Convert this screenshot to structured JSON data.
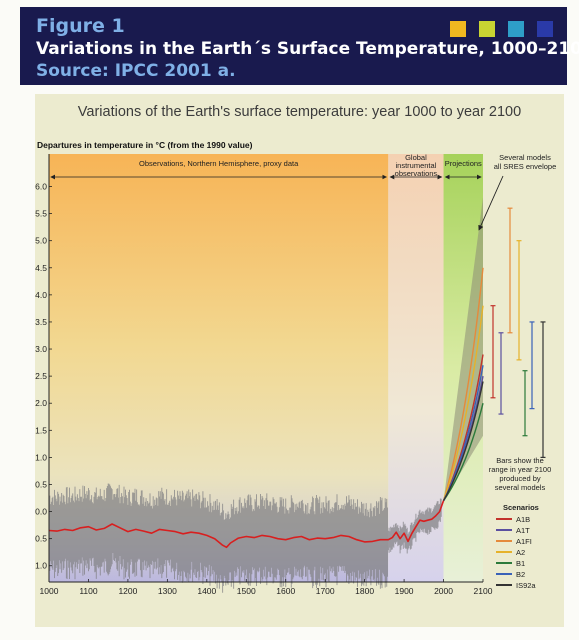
{
  "header": {
    "figure_label": "Figure 1",
    "title": "Variations in the Earth´s Surface Temperature, 1000–2100.",
    "source": "Source: IPCC 2001 a.",
    "swatch_colors": [
      "#f0b820",
      "#c8d432",
      "#2e9ec8",
      "#2a3aa8"
    ]
  },
  "chart_data": {
    "type": "line",
    "title": "Variations of the Earth's surface temperature: year 1000 to year 2100",
    "ylabel": "Departures in temperature in °C (from the 1990 value)",
    "xlim": [
      1000,
      2100
    ],
    "ylim": [
      -1.3,
      6.6
    ],
    "x_ticks": [
      "1000",
      "1100",
      "1200",
      "1300",
      "1400",
      "1500",
      "1600",
      "1700",
      "1800",
      "1900",
      "2000",
      "2100"
    ],
    "y_ticks": [
      "-1.0",
      "-0.5",
      "0.0",
      "0.5",
      "1.0",
      "1.5",
      "2.0",
      "2.5",
      "3.0",
      "3.5",
      "4.0",
      "4.5",
      "5.0",
      "5.5",
      "6.0"
    ],
    "periods": [
      {
        "label": "Observations, Northern Hemisphere, proxy data",
        "from": 1000,
        "to": 1860
      },
      {
        "label": "Global instrumental observations",
        "from": 1860,
        "to": 2000
      },
      {
        "label": "Projections",
        "from": 2000,
        "to": 2100
      }
    ],
    "envelope_label": "Several models all SRES envelope",
    "bars_note": "Bars show the range in year 2100 produced by several models",
    "scenarios_title": "Scenarios",
    "observed": {
      "color": "#d81f1f",
      "x": [
        1000,
        1020,
        1040,
        1060,
        1080,
        1100,
        1120,
        1140,
        1160,
        1180,
        1200,
        1220,
        1240,
        1260,
        1280,
        1300,
        1320,
        1340,
        1360,
        1380,
        1400,
        1420,
        1440,
        1450,
        1460,
        1480,
        1500,
        1520,
        1540,
        1560,
        1580,
        1600,
        1620,
        1640,
        1660,
        1680,
        1700,
        1720,
        1740,
        1760,
        1780,
        1800,
        1820,
        1840,
        1860,
        1870,
        1880,
        1890,
        1900,
        1910,
        1920,
        1930,
        1940,
        1950,
        1960,
        1970,
        1980,
        1990,
        2000
      ],
      "y": [
        -0.35,
        -0.36,
        -0.33,
        -0.35,
        -0.3,
        -0.28,
        -0.34,
        -0.31,
        -0.23,
        -0.3,
        -0.37,
        -0.33,
        -0.36,
        -0.4,
        -0.33,
        -0.35,
        -0.37,
        -0.41,
        -0.38,
        -0.4,
        -0.44,
        -0.5,
        -0.62,
        -0.66,
        -0.58,
        -0.49,
        -0.46,
        -0.48,
        -0.44,
        -0.46,
        -0.5,
        -0.52,
        -0.48,
        -0.46,
        -0.52,
        -0.49,
        -0.5,
        -0.48,
        -0.44,
        -0.46,
        -0.52,
        -0.56,
        -0.55,
        -0.52,
        -0.52,
        -0.48,
        -0.38,
        -0.5,
        -0.4,
        -0.55,
        -0.4,
        -0.28,
        -0.16,
        -0.18,
        -0.16,
        -0.14,
        -0.08,
        0.0,
        0.2
      ]
    },
    "scenarios": [
      {
        "name": "A1B",
        "color": "#c2322c",
        "value_2100": 2.9,
        "range": [
          2.1,
          3.8
        ]
      },
      {
        "name": "A1T",
        "color": "#5b4fa0",
        "value_2100": 2.5,
        "range": [
          1.8,
          3.3
        ]
      },
      {
        "name": "A1FI",
        "color": "#e58a3c",
        "value_2100": 4.5,
        "range": [
          3.3,
          5.6
        ]
      },
      {
        "name": "A2",
        "color": "#e6b22a",
        "value_2100": 3.8,
        "range": [
          2.8,
          5.0
        ]
      },
      {
        "name": "B1",
        "color": "#2c7a3a",
        "value_2100": 2.0,
        "range": [
          1.4,
          2.6
        ]
      },
      {
        "name": "B2",
        "color": "#3a62b8",
        "value_2100": 2.7,
        "range": [
          1.9,
          3.5
        ]
      },
      {
        "name": "IS92a",
        "color": "#333333",
        "value_2100": 2.4,
        "range": [
          1.0,
          3.5
        ]
      }
    ],
    "envelope": {
      "x": [
        2000,
        2100
      ],
      "lower": [
        0.2,
        1.4
      ],
      "upper": [
        0.2,
        5.8
      ]
    },
    "grid": false
  }
}
